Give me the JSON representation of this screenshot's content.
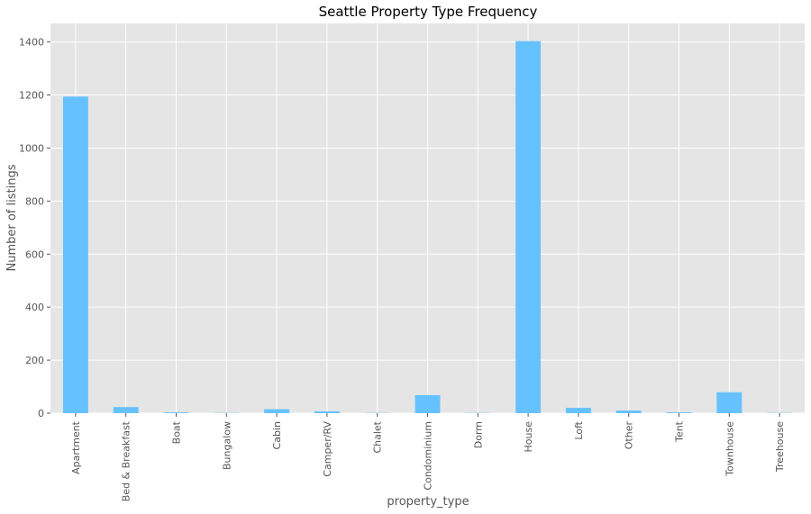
{
  "chart_data": {
    "type": "bar",
    "title": "Seattle Property Type Frequency",
    "xlabel": "property_type",
    "ylabel": "Number of listings",
    "categories": [
      "Apartment",
      "Bed & Breakfast",
      "Boat",
      "Bungalow",
      "Cabin",
      "Camper/RV",
      "Chalet",
      "Condominium",
      "Dorm",
      "House",
      "Loft",
      "Other",
      "Tent",
      "Townhouse",
      "Treehouse"
    ],
    "values": [
      1194,
      23,
      3,
      1,
      15,
      7,
      1,
      68,
      1,
      1403,
      20,
      10,
      3,
      79,
      1
    ],
    "ylim": [
      0,
      1470
    ],
    "yticks": [
      0,
      200,
      400,
      600,
      800,
      1000,
      1200,
      1400
    ],
    "grid": true,
    "legend": "none",
    "colors": {
      "bar": "#66c2ff",
      "plot_background": "#e5e5e5",
      "grid": "#ffffff",
      "text": "#555555"
    }
  }
}
